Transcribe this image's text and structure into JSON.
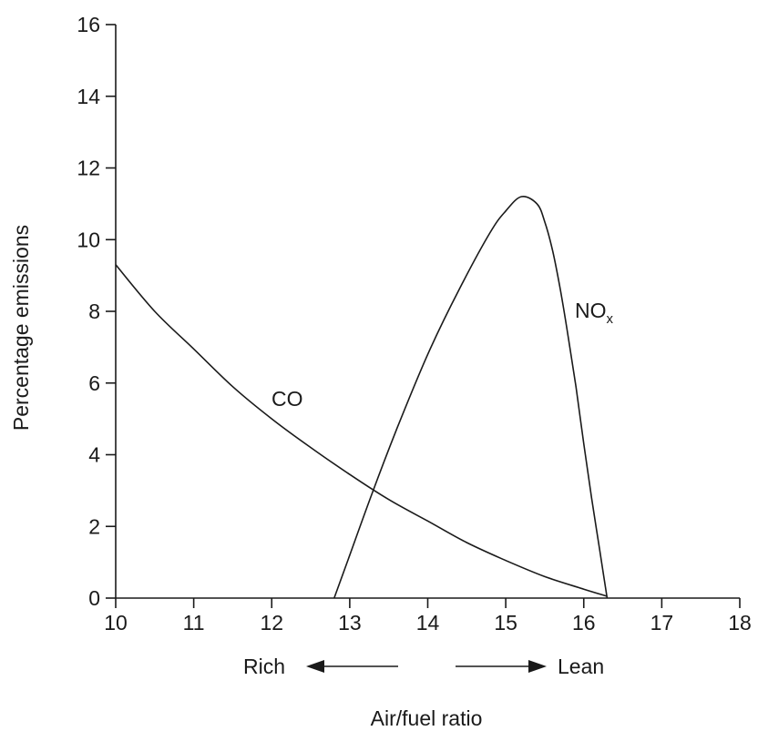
{
  "chart_data": {
    "type": "line",
    "xlabel": "Air/fuel ratio",
    "ylabel": "Percentage emissions",
    "xlim": [
      10,
      18
    ],
    "ylim": [
      0,
      16
    ],
    "x_ticks": [
      10,
      11,
      12,
      13,
      14,
      15,
      16,
      17,
      18
    ],
    "y_ticks": [
      0,
      2,
      4,
      6,
      8,
      10,
      12,
      14,
      16
    ],
    "grid": false,
    "series": [
      {
        "name": "CO",
        "x": [
          10,
          10.5,
          11,
          11.5,
          12,
          12.5,
          13,
          13.5,
          14,
          14.5,
          15,
          15.5,
          16,
          16.3
        ],
        "y": [
          9.3,
          8.0,
          6.95,
          5.9,
          5.0,
          4.2,
          3.45,
          2.75,
          2.15,
          1.55,
          1.05,
          0.6,
          0.25,
          0.05
        ]
      },
      {
        "name": "NOx",
        "x": [
          12.8,
          13.0,
          13.3,
          13.6,
          14.0,
          14.4,
          14.8,
          15.0,
          15.2,
          15.4,
          15.5,
          15.6,
          15.7,
          15.8,
          15.9,
          16.0,
          16.1,
          16.2,
          16.3
        ],
        "y": [
          0,
          1.2,
          3.0,
          4.7,
          6.8,
          8.6,
          10.2,
          10.8,
          11.2,
          11.0,
          10.5,
          9.7,
          8.6,
          7.3,
          5.9,
          4.3,
          2.8,
          1.4,
          0
        ]
      }
    ],
    "annotations": {
      "co_label": "CO",
      "nox_label_main": "NO",
      "nox_label_sub": "x"
    },
    "direction": {
      "rich_label": "Rich",
      "lean_label": "Lean"
    }
  }
}
